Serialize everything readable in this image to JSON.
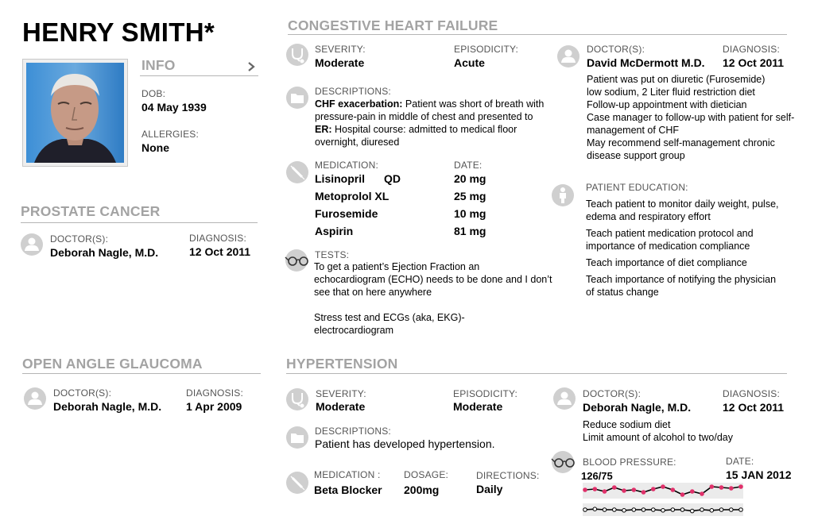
{
  "patient": {
    "name": "HENRY SMITH*",
    "info_header": "INFO",
    "dob_label": "DOB:",
    "dob": "04 May 1939",
    "allergies_label": "ALLERGIES:",
    "allergies": "None"
  },
  "prostate": {
    "title": "PROSTATE CANCER",
    "doctor_label": "DOCTOR(S):",
    "doctor": "Deborah Nagle, M.D.",
    "diagnosis_label": "DIAGNOSIS:",
    "diagnosis": "12 Oct 2011"
  },
  "glaucoma": {
    "title": "OPEN ANGLE GLAUCOMA",
    "doctor_label": "DOCTOR(S):",
    "doctor": "Deborah Nagle, M.D.",
    "diagnosis_label": "DIAGNOSIS:",
    "diagnosis": "1 Apr 2009"
  },
  "chf": {
    "title": "CONGESTIVE HEART FAILURE",
    "severity_label": "SEVERITY:",
    "severity": "Moderate",
    "episodicity_label": "EPISODICITY:",
    "episodicity": "Acute",
    "descriptions_label": "DESCRIPTIONS:",
    "desc1_bold": "CHF exacerbation:",
    "desc1_text": " Patient was short of breath with pressure-pain in middle of chest and presented to",
    "desc2_bold": "ER:",
    "desc2_text": " Hospital course: admitted to medical floor overnight, diuresed",
    "medication_label": "MEDICATION:",
    "date_label": "DATE:",
    "medications": [
      {
        "name": "Lisinopril",
        "freq": "QD",
        "dose": "20 mg"
      },
      {
        "name": "Metoprolol XL",
        "freq": "",
        "dose": "25 mg"
      },
      {
        "name": "Furosemide",
        "freq": "",
        "dose": "10 mg"
      },
      {
        "name": "Aspirin",
        "freq": "",
        "dose": "81 mg"
      }
    ],
    "tests_label": "TESTS:",
    "tests_text1": "To get a patient’s Ejection Fraction an echocardiogram (ECHO) needs to be done and I don’t see that on here anywhere",
    "tests_text2": "Stress test and ECGs  (aka, EKG)-electrocardiogram",
    "doctor_label": "DOCTOR(S):",
    "doctor": "David McDermott M.D.",
    "diagnosis_label": "DIAGNOSIS:",
    "diagnosis": "12 Oct 2011",
    "plan": [
      "Patient was put on diuretic (Furosemide)",
      "low sodium, 2 Liter fluid restriction diet",
      "Follow-up appointment with dietician",
      "Case manager to follow-up with patient for self-management of CHF",
      "May recommend self-management chronic disease support group"
    ],
    "education_label": "PATIENT EDUCATION:",
    "education": [
      "Teach patient to monitor daily weight, pulse, edema and respiratory effort",
      "Teach patient medication protocol and importance of medication compliance",
      "Teach importance of diet compliance",
      "Teach importance of notifying the physician of status change"
    ]
  },
  "htn": {
    "title": "HYPERTENSION",
    "severity_label": "SEVERITY:",
    "severity": "Moderate",
    "episodicity_label": "EPISODICITY:",
    "episodicity": "Moderate",
    "descriptions_label": "DESCRIPTIONS:",
    "description": "Patient has developed hypertension.",
    "medication_label": "MEDICATION :",
    "medication": "Beta Blocker",
    "dosage_label": "DOSAGE:",
    "dosage": "200mg",
    "directions_label": "DIRECTIONS:",
    "directions": "Daily",
    "doctor_label": "DOCTOR(S):",
    "doctor": "Deborah Nagle, M.D.",
    "diagnosis_label": "DIAGNOSIS:",
    "diagnosis": "12 Oct 2011",
    "plan": [
      "Reduce sodium diet",
      "Limit amount of alcohol to two/day"
    ],
    "bp_label": "BLOOD PRESSURE:",
    "bp_value": "126/75",
    "date_label": "DATE:",
    "date": "15 JAN 2012"
  },
  "colors": {
    "section_title": "#a3a3a3",
    "systolic_point": "#e0306a",
    "line": "#000000",
    "icon_bg": "#cfcfcf"
  },
  "chart_data": {
    "type": "line",
    "series": [
      {
        "values": [
          0.55,
          0.6,
          0.45,
          0.7,
          0.5,
          0.55,
          0.4,
          0.6,
          0.75,
          0.55,
          0.25,
          0.45,
          0.3,
          0.75,
          0.7,
          0.65,
          0.75
        ]
      },
      {
        "values": [
          0.5,
          0.55,
          0.5,
          0.5,
          0.45,
          0.5,
          0.5,
          0.5,
          0.45,
          0.5,
          0.5,
          0.4,
          0.5,
          0.45,
          0.5,
          0.5,
          0.5
        ]
      }
    ]
  }
}
